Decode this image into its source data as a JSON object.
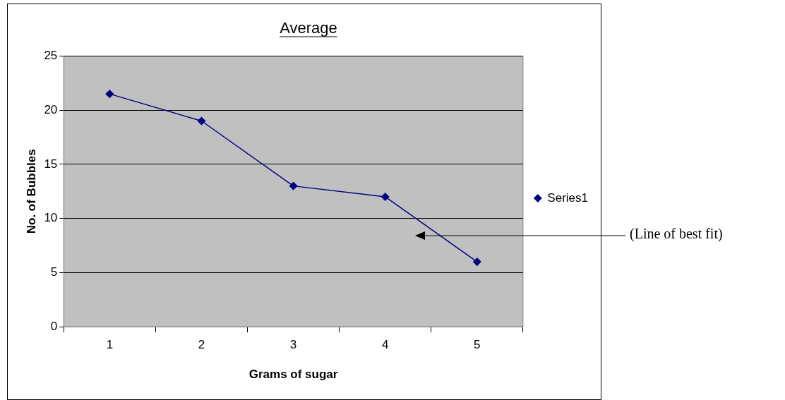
{
  "chart_data": {
    "type": "line",
    "title": "Average",
    "xlabel": "Grams of sugar",
    "ylabel": "No. of Bubbles",
    "categories": [
      "1",
      "2",
      "3",
      "4",
      "5"
    ],
    "series": [
      {
        "name": "Series1",
        "color": "#000080",
        "values": [
          21.5,
          19,
          13,
          12,
          6
        ]
      }
    ],
    "ylim": [
      0,
      25
    ],
    "yticks": [
      0,
      5,
      10,
      15,
      20,
      25
    ],
    "grid": "y",
    "legend": "right",
    "marker": "diamond",
    "line_style": "solid",
    "annotations": [
      "(Line of best fit)"
    ]
  }
}
